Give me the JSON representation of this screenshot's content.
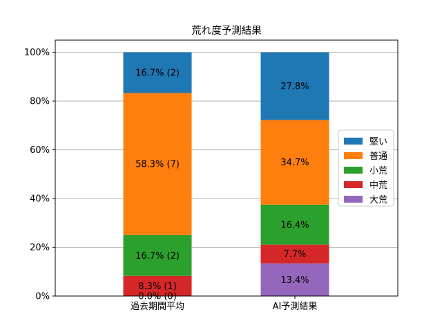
{
  "chart_data": {
    "type": "bar",
    "stacked": true,
    "title": "荒れ度予測結果",
    "xlabel": "",
    "ylabel": "",
    "ylim": [
      0,
      100
    ],
    "y_tick_format": "percent",
    "yticks": [
      "0%",
      "20%",
      "40%",
      "60%",
      "80%",
      "100%"
    ],
    "grid": "horizontal",
    "legend_placement": "center-right",
    "categories": [
      "過去期間平均",
      "AI予測結果"
    ],
    "series": [
      {
        "name": "大荒",
        "color": "#9467bd",
        "values": [
          0.0,
          13.4
        ],
        "labels": [
          "0.0% (0)",
          "13.4%"
        ]
      },
      {
        "name": "中荒",
        "color": "#d62728",
        "values": [
          8.3,
          7.7
        ],
        "labels": [
          "8.3% (1)",
          "7.7%"
        ]
      },
      {
        "name": "小荒",
        "color": "#2ca02c",
        "values": [
          16.7,
          16.4
        ],
        "labels": [
          "16.7% (2)",
          "16.4%"
        ]
      },
      {
        "name": "普通",
        "color": "#ff7f0e",
        "values": [
          58.3,
          34.7
        ],
        "labels": [
          "58.3% (7)",
          "34.7%"
        ]
      },
      {
        "name": "堅い",
        "color": "#1f77b4",
        "values": [
          16.7,
          27.8
        ],
        "labels": [
          "16.7% (2)",
          "27.8%"
        ]
      }
    ],
    "legend_order": [
      "堅い",
      "普通",
      "小荒",
      "中荒",
      "大荒"
    ]
  }
}
